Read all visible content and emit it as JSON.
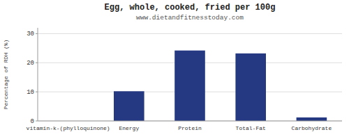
{
  "chart_data": {
    "type": "bar",
    "title": "Egg, whole, cooked, fried per 100g",
    "subtitle": "www.dietandfitnesstoday.com",
    "categories": [
      "vitamin-k-(phylloquinone)",
      "Energy",
      "Protein",
      "Total-Fat",
      "Carbohydrate"
    ],
    "values": [
      0,
      10.2,
      24.2,
      23.2,
      1.2
    ],
    "color": "#253882",
    "ylabel": "Percentage of RDH (%)",
    "ylim": [
      0,
      32
    ],
    "yticks": [
      0,
      10,
      20,
      30
    ],
    "grid": true
  }
}
